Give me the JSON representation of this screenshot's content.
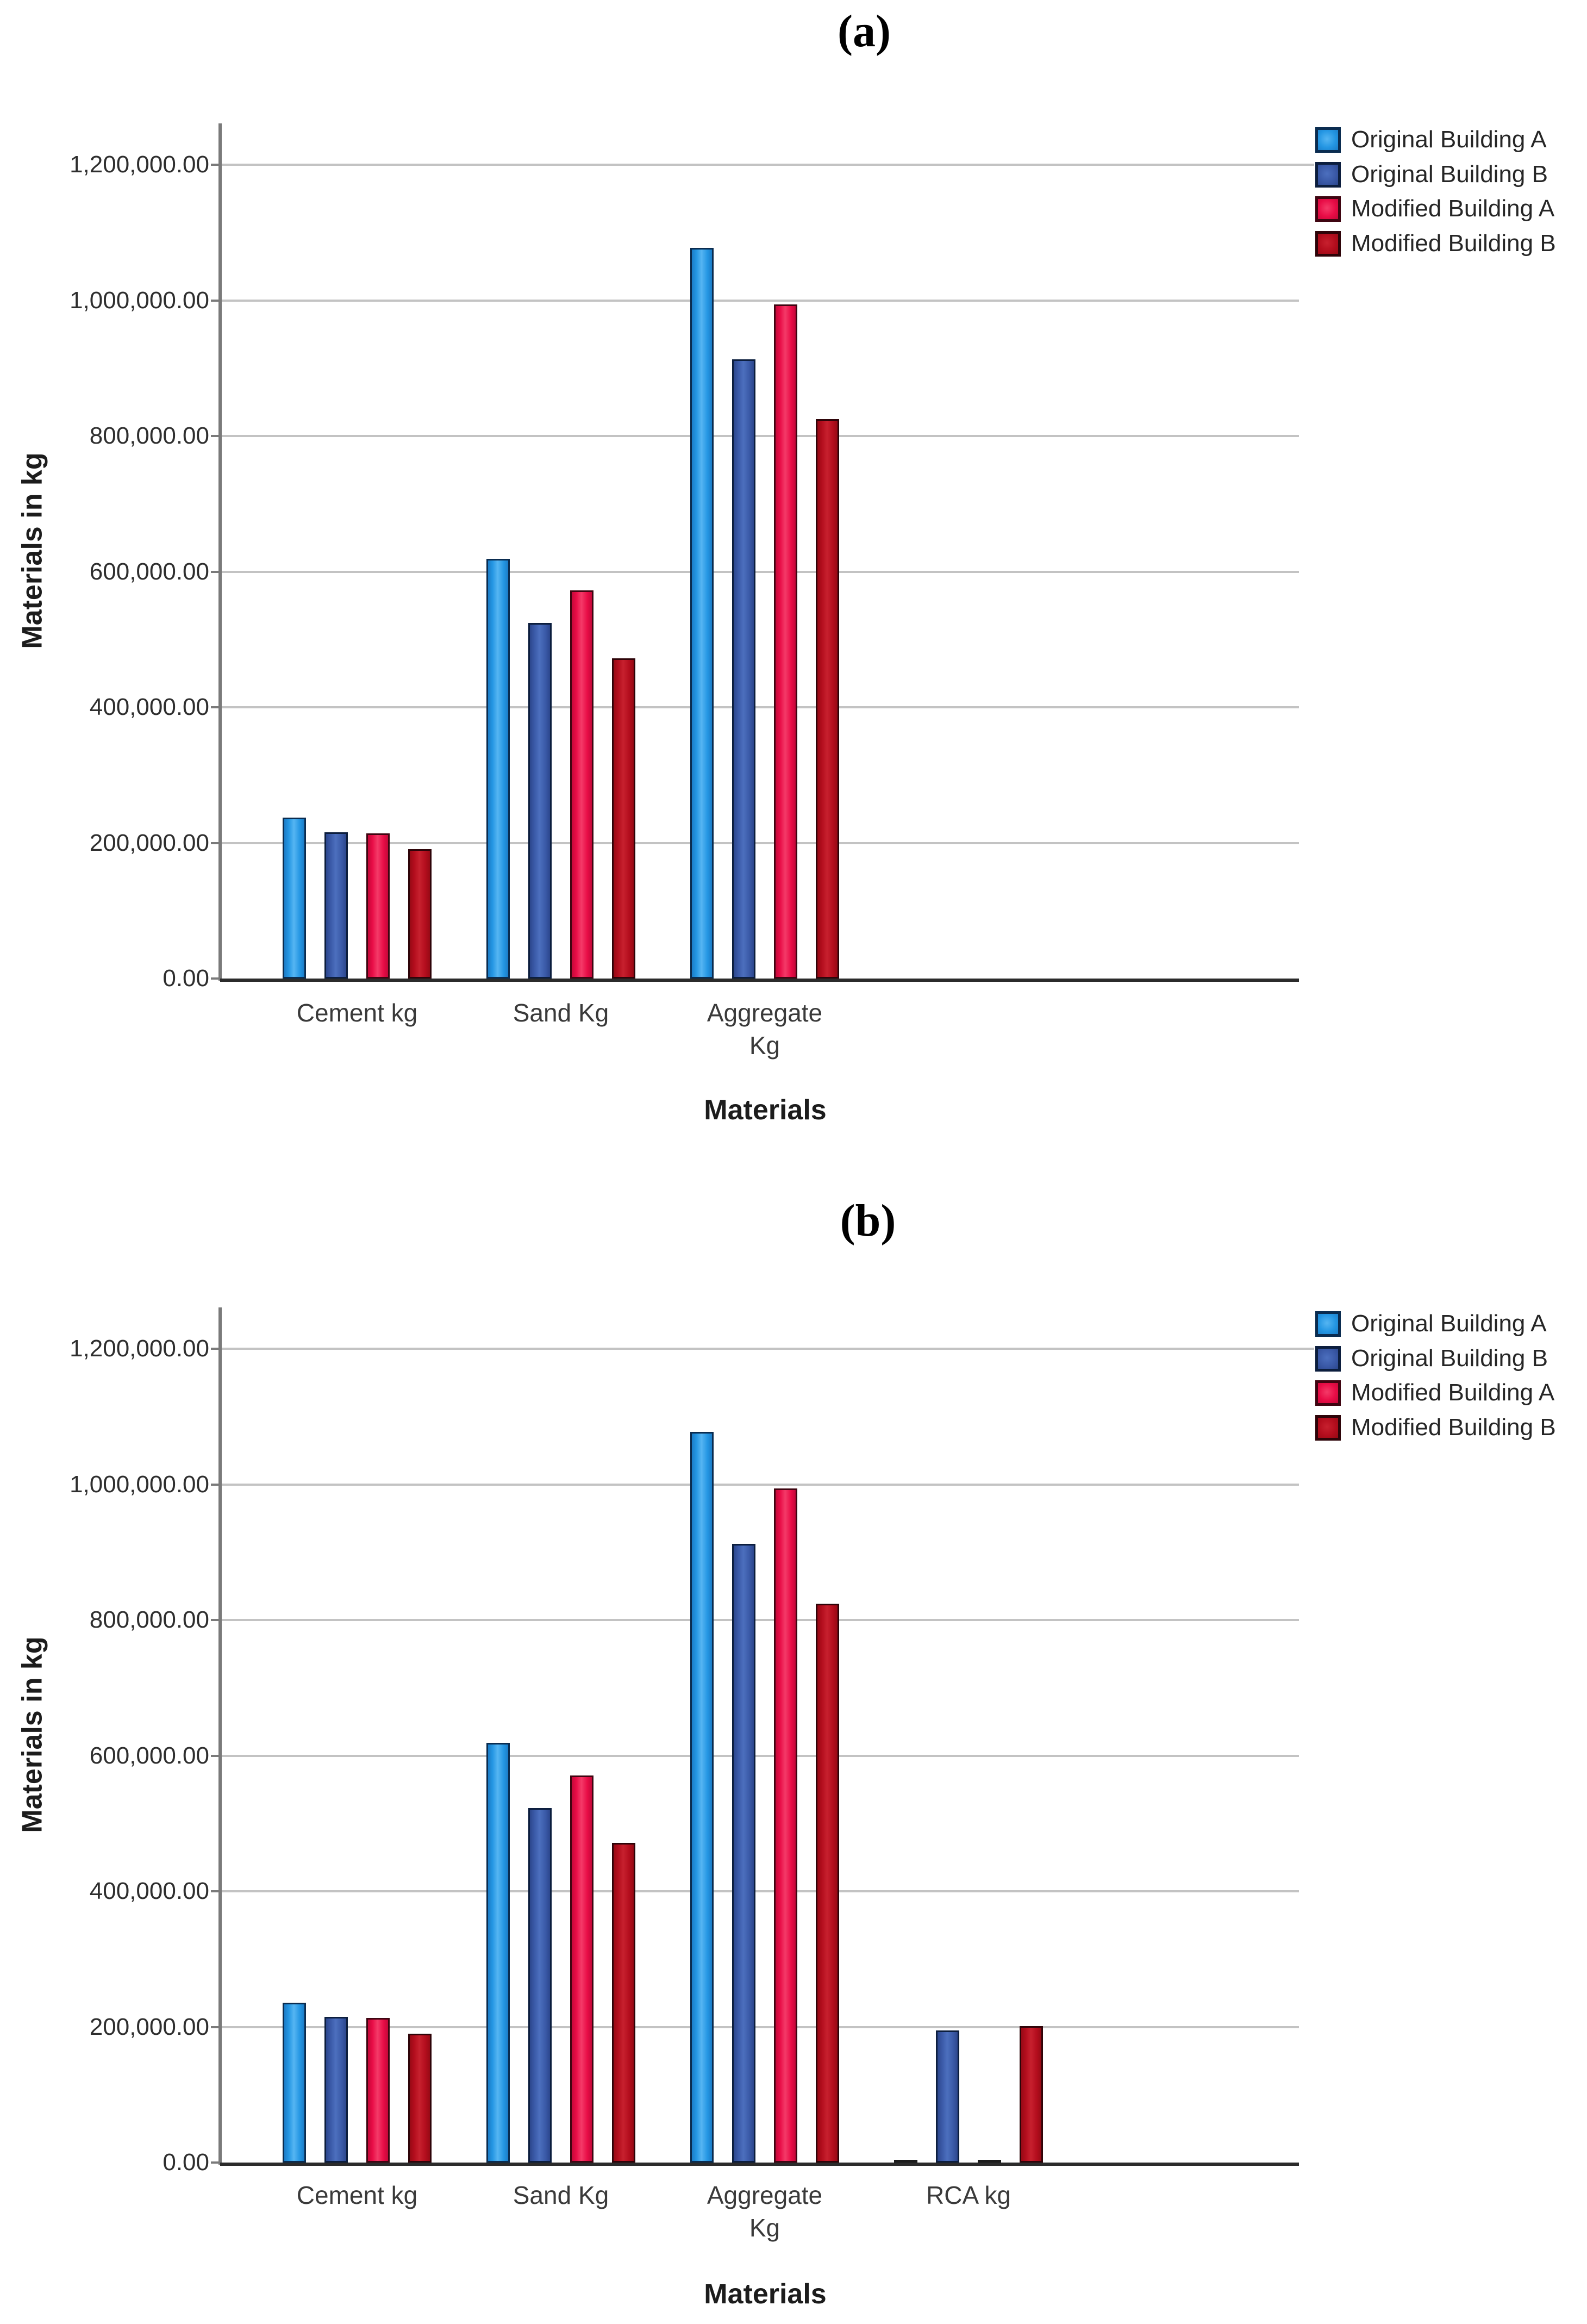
{
  "page": {
    "background": "#ffffff"
  },
  "panels": [
    {
      "label": "(a)"
    },
    {
      "label": "(b)"
    }
  ],
  "legend": {
    "position": "top-right",
    "items": [
      "Original Building A",
      "Original Building B",
      "Modified Building A",
      "Modified Building B"
    ]
  },
  "colors": {
    "grid": "#c3c3c3",
    "y_axis": "#7a7a7a",
    "x_axis": "#2b2b2b",
    "text": "#2e2e2e",
    "series": [
      {
        "name": "Original Building A",
        "fill": "#2496E3",
        "light": "#55B5F2",
        "dark": "#1B7CC7",
        "border": "#0A2C50"
      },
      {
        "name": "Original Building B",
        "fill": "#3A59A7",
        "light": "#4C6FBE",
        "dark": "#2C478D",
        "border": "#0C1E3E"
      },
      {
        "name": "Modified Building A",
        "fill": "#E80C46",
        "light": "#F43A68",
        "dark": "#C40839",
        "border": "#3F0511"
      },
      {
        "name": "Modified Building B",
        "fill": "#B30D1D",
        "light": "#C7202E",
        "dark": "#970A15",
        "border": "#2E0409"
      }
    ]
  },
  "chart_data": [
    {
      "type": "bar",
      "panel": "a",
      "title": "(a)",
      "xlabel": "Materials",
      "ylabel": "Materials in kg",
      "ylim": [
        0,
        1260000
      ],
      "grid": true,
      "legend_position": "top-right",
      "yticks": [
        "0.00",
        "200,000.00",
        "400,000.00",
        "600,000.00",
        "800,000.00",
        "1,000,000.00",
        "1,200,000.00"
      ],
      "categories": [
        "Cement kg",
        "Sand Kg",
        "Aggregate Kg"
      ],
      "category_display": [
        "Cement kg",
        "Sand Kg",
        "Aggregate\nKg"
      ],
      "series": [
        {
          "name": "Original Building A",
          "values": [
            237000,
            619000,
            1077000
          ]
        },
        {
          "name": "Original Building B",
          "values": [
            216000,
            524000,
            913000
          ]
        },
        {
          "name": "Modified Building A",
          "values": [
            214000,
            572000,
            994000
          ]
        },
        {
          "name": "Modified Building B",
          "values": [
            191000,
            472000,
            825000
          ]
        }
      ]
    },
    {
      "type": "bar",
      "panel": "b",
      "title": "(b)",
      "xlabel": "Materials",
      "ylabel": "Materials in kg",
      "ylim": [
        0,
        1260000
      ],
      "grid": true,
      "legend_position": "top-right",
      "yticks": [
        "0.00",
        "200,000.00",
        "400,000.00",
        "600,000.00",
        "800,000.00",
        "1,000,000.00",
        "1,200,000.00"
      ],
      "categories": [
        "Cement kg",
        "Sand Kg",
        "Aggregate Kg",
        "RCA kg"
      ],
      "category_display": [
        "Cement kg",
        "Sand Kg",
        "Aggregate\nKg",
        "RCA kg"
      ],
      "series": [
        {
          "name": "Original Building A",
          "values": [
            236000,
            619000,
            1077000,
            0
          ]
        },
        {
          "name": "Original Building B",
          "values": [
            215000,
            523000,
            912000,
            195000
          ]
        },
        {
          "name": "Modified Building A",
          "values": [
            213000,
            571000,
            994000,
            0
          ]
        },
        {
          "name": "Modified Building B",
          "values": [
            190000,
            471000,
            824000,
            201000
          ]
        }
      ]
    }
  ]
}
